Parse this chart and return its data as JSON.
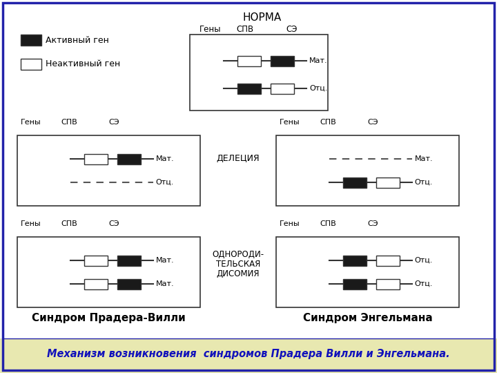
{
  "bg_outer": "#e8e8b0",
  "bg_inner": "#ffffff",
  "border_color": "#2222aa",
  "box_edge": "#333333",
  "active_color": "#1a1a1a",
  "inactive_color": "#ffffff",
  "line_color": "#333333",
  "dash_color": "#555555",
  "title_norma": "НОРМА",
  "col_headers": [
    "Гены",
    "СПВ",
    "СЭ"
  ],
  "label_mat": "Мат.",
  "label_otc": "Отц.",
  "label_deletion": "ДЕЛЕЦИЯ",
  "label_uniparental": [
    "ОДНОРОДИ-",
    "ТЕЛЬСКАЯ",
    "ДИСОМИЯ"
  ],
  "legend_active": "Активный ген",
  "legend_inactive": "Неактивный ген",
  "label_spv": "Синдром Прадера-Вилли",
  "label_se": "Синдром Энгельмана",
  "footer": "Механизм возникновения  синдромов Прадера Вилли и Энгельмана.",
  "footer_color": "#1111bb",
  "footer_bg": "#e8e8b0"
}
